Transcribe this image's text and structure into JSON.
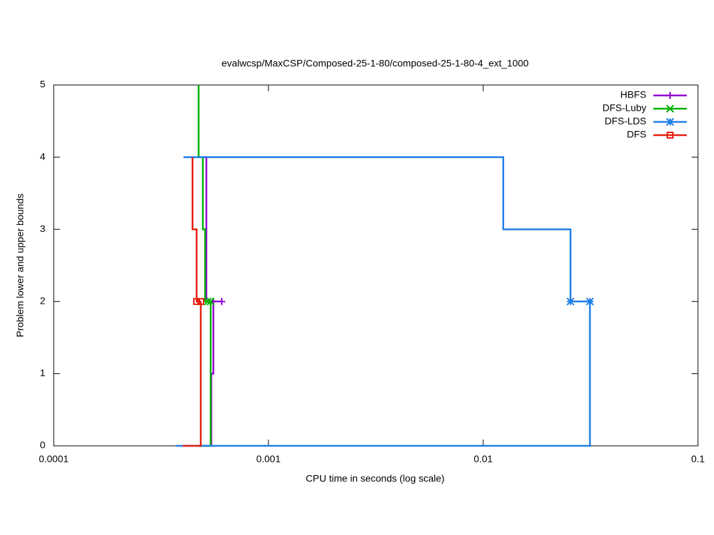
{
  "chart_data": {
    "type": "line",
    "title": "evalwcsp/MaxCSP/Composed-25-1-80/composed-25-1-80-4_ext_1000",
    "x_label": "CPU time in seconds (log scale)",
    "y_label": "Problem lower and upper bounds",
    "x_scale": "log",
    "xlim": [
      0.0001,
      0.1
    ],
    "xticks": [
      0.0001,
      0.001,
      0.01,
      0.1
    ],
    "ylim": [
      0,
      5
    ],
    "yticks": [
      0,
      1,
      2,
      3,
      4,
      5
    ],
    "legend": "top-right",
    "series": [
      {
        "name": "HBFS",
        "color": "#9400d3",
        "marker": "plus",
        "x": [
          0.000499,
          0.000514,
          0.000514,
          0.000606,
          null,
          0.000542,
          0.000542,
          0.000554,
          0.000554
        ],
        "values": [
          4,
          4,
          2,
          2,
          null,
          0,
          1,
          1,
          2
        ],
        "marker_x": [
          0.000554,
          0.000606
        ],
        "marker_values": [
          2,
          2
        ]
      },
      {
        "name": "DFS-Luby",
        "color": "#00b000",
        "marker": "cross",
        "x": [
          0.000473,
          0.000473,
          0.000495,
          0.000495,
          0.000507,
          0.000507,
          0.000538,
          null,
          0.000473,
          0.000538,
          0.000538
        ],
        "values": [
          5,
          4,
          4,
          3,
          3,
          2,
          2,
          null,
          0,
          0,
          2
        ],
        "marker_x": [
          0.000522,
          0.000538
        ],
        "marker_values": [
          2,
          2
        ]
      },
      {
        "name": "DFS-LDS",
        "color": "#1e7fe6",
        "marker": "star",
        "x": [
          0.000402,
          0.0124,
          0.0124,
          0.0255,
          0.0255,
          0.0314,
          null,
          0.00037,
          0.0314,
          0.0314
        ],
        "values": [
          4,
          4,
          3,
          3,
          2,
          2,
          null,
          0,
          0,
          2
        ],
        "marker_x": [
          0.0255,
          0.0314
        ],
        "marker_values": [
          2,
          2
        ]
      },
      {
        "name": "DFS",
        "color": "#e51e10",
        "marker": "square",
        "x": [
          0.000443,
          0.000443,
          0.000463,
          0.000463,
          0.000484,
          null,
          0.000399,
          0.000484,
          0.000484
        ],
        "values": [
          4,
          3,
          3,
          2,
          2,
          null,
          0,
          0,
          2
        ],
        "marker_x": [
          0.000463,
          0.000484
        ],
        "marker_values": [
          2,
          2
        ]
      }
    ]
  }
}
